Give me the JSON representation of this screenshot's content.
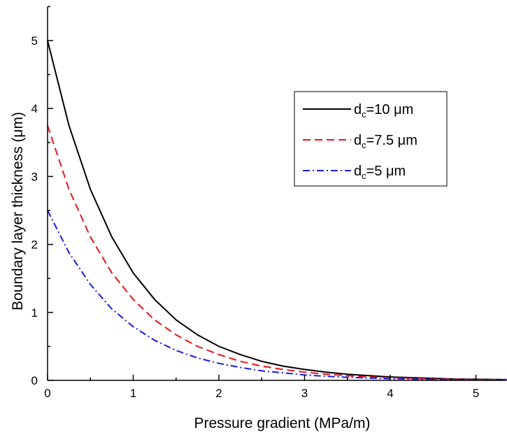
{
  "chart_data": {
    "type": "line",
    "title": "",
    "xlabel": "Pressure gradient (MPa/m)",
    "ylabel": "Boundary layer thickness (μm)",
    "xlim": [
      0,
      5.5
    ],
    "ylim": [
      0,
      5.5
    ],
    "xticks": [
      "0",
      "1",
      "2",
      "3",
      "4",
      "5"
    ],
    "yticks": [
      "0",
      "1",
      "2",
      "3",
      "4",
      "5"
    ],
    "grid": false,
    "legend_position": "right",
    "x": [
      0,
      0.25,
      0.5,
      0.75,
      1.0,
      1.25,
      1.5,
      1.75,
      2.0,
      2.25,
      2.5,
      2.75,
      3.0,
      3.25,
      3.5,
      3.75,
      4.0,
      4.25,
      4.5,
      4.75,
      5.0,
      5.25,
      5.5
    ],
    "series": [
      {
        "name": "dc=10 μm",
        "legend_main": "d",
        "legend_sub": "c",
        "legend_rest": "=10 μm",
        "color": "#000000",
        "dash": "solid",
        "values": [
          5.0,
          3.75,
          2.81,
          2.11,
          1.58,
          1.19,
          0.89,
          0.67,
          0.5,
          0.38,
          0.28,
          0.21,
          0.16,
          0.12,
          0.09,
          0.07,
          0.05,
          0.04,
          0.03,
          0.02,
          0.016,
          0.012,
          0.009
        ]
      },
      {
        "name": "dc=7.5 μm",
        "legend_main": "d",
        "legend_sub": "c",
        "legend_rest": "=7.5 μm",
        "color": "#e8141c",
        "dash": "dashed",
        "values": [
          3.75,
          2.81,
          2.11,
          1.58,
          1.19,
          0.89,
          0.67,
          0.5,
          0.38,
          0.28,
          0.21,
          0.16,
          0.12,
          0.09,
          0.07,
          0.05,
          0.04,
          0.03,
          0.02,
          0.016,
          0.012,
          0.009,
          0.007
        ]
      },
      {
        "name": "dc=5 μm",
        "legend_main": "d",
        "legend_sub": "c",
        "legend_rest": "=5 μm",
        "color": "#1a1adf",
        "dash": "dashdot",
        "values": [
          2.5,
          1.88,
          1.41,
          1.05,
          0.79,
          0.59,
          0.44,
          0.33,
          0.25,
          0.19,
          0.14,
          0.11,
          0.08,
          0.06,
          0.045,
          0.034,
          0.025,
          0.019,
          0.014,
          0.011,
          0.008,
          0.006,
          0.005
        ]
      }
    ]
  }
}
